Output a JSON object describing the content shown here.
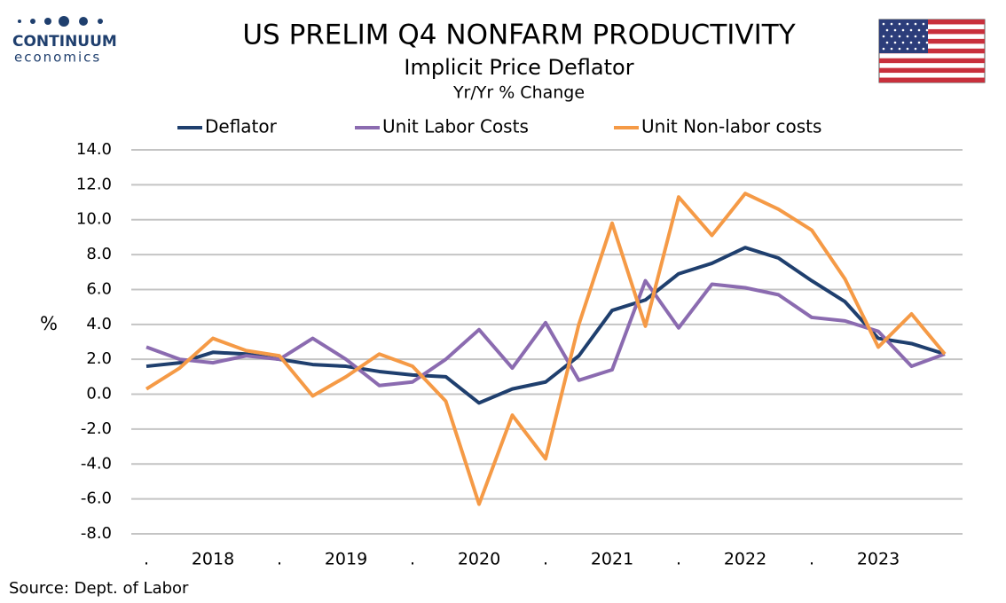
{
  "logo": {
    "name": "CONTINUUM",
    "tagline": "economics"
  },
  "chart_data": {
    "type": "line",
    "title": "US PRELIM Q4 NONFARM PRODUCTIVITY",
    "subtitle": "Implicit Price Deflator",
    "subtitle2": "Yr/Yr % Change",
    "y_label": "%",
    "source": "Source: Dept. of Labor",
    "categories": [
      ".",
      null,
      "2018",
      null,
      ".",
      null,
      "2019",
      null,
      ".",
      null,
      "2020",
      null,
      ".",
      null,
      "2021",
      null,
      ".",
      null,
      "2022",
      null,
      ".",
      null,
      "2023",
      null,
      null
    ],
    "series": [
      {
        "name": "Deflator",
        "color": "#1f3f6e",
        "values": [
          1.6,
          1.8,
          2.4,
          2.3,
          2.0,
          1.7,
          1.6,
          1.3,
          1.1,
          1.0,
          -0.5,
          0.3,
          0.7,
          2.2,
          4.8,
          5.4,
          6.9,
          7.5,
          8.4,
          7.8,
          6.5,
          5.3,
          3.2,
          2.9,
          2.3
        ]
      },
      {
        "name": "Unit Labor Costs",
        "color": "#8b6bb0",
        "values": [
          2.7,
          2.0,
          1.8,
          2.2,
          2.0,
          3.2,
          2.0,
          0.5,
          0.7,
          2.0,
          3.7,
          1.5,
          4.1,
          0.8,
          1.4,
          6.5,
          3.8,
          6.3,
          6.1,
          5.7,
          4.4,
          4.2,
          3.6,
          1.6,
          2.3
        ]
      },
      {
        "name": "Unit Non-labor costs",
        "color": "#f59a46",
        "values": [
          0.3,
          1.5,
          3.2,
          2.5,
          2.2,
          -0.1,
          1.0,
          2.3,
          1.6,
          -0.4,
          -6.3,
          -1.2,
          -3.7,
          4.0,
          9.8,
          3.9,
          11.3,
          9.1,
          11.5,
          10.6,
          9.4,
          6.6,
          2.7,
          4.6,
          2.3
        ]
      }
    ],
    "ylim": [
      -8,
      14
    ],
    "yticks": [
      {
        "value": -8,
        "label": "-8.0"
      },
      {
        "value": -6,
        "label": "-6.0"
      },
      {
        "value": -4,
        "label": "-4.0"
      },
      {
        "value": -2,
        "label": "-2.0"
      },
      {
        "value": 0,
        "label": "0.0"
      },
      {
        "value": 2,
        "label": "2.0"
      },
      {
        "value": 4,
        "label": "4.0"
      },
      {
        "value": 6,
        "label": "6.0"
      },
      {
        "value": 8,
        "label": "8.0"
      },
      {
        "value": 10,
        "label": "10.0"
      },
      {
        "value": 12,
        "label": "12.0"
      },
      {
        "value": 14,
        "label": "14.0"
      }
    ],
    "grid": true
  }
}
